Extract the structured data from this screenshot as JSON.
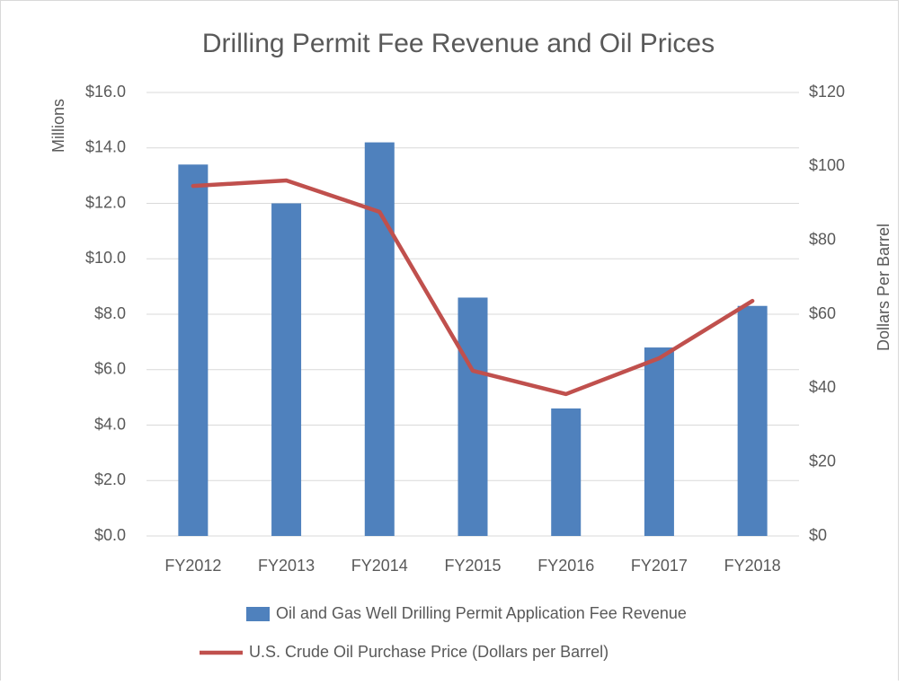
{
  "chart_data": {
    "type": "bar",
    "title": "Drilling Permit Fee Revenue and Oil Prices",
    "ylabel": "Millions",
    "y2label": "Dollars Per Barrel",
    "categories": [
      "FY2012",
      "FY2013",
      "FY2014",
      "FY2015",
      "FY2016",
      "FY2017",
      "FY2018"
    ],
    "series": [
      {
        "name": "Oil and Gas Well Drilling Permit Application Fee Revenue",
        "type": "bar",
        "color": "#4f81bd",
        "values": [
          13.4,
          12.0,
          14.2,
          8.6,
          4.6,
          6.8,
          8.3
        ]
      },
      {
        "name": "U.S. Crude Oil Purchase Price (Dollars per Barrel)",
        "type": "line",
        "axis": "y2",
        "color": "#c0504d",
        "values": [
          94.7,
          96.2,
          87.7,
          44.7,
          38.4,
          48.1,
          63.6
        ]
      }
    ],
    "ylim": [
      0,
      16
    ],
    "yticks": [
      {
        "value": 0,
        "label": "$0.0"
      },
      {
        "value": 2,
        "label": "$2.0"
      },
      {
        "value": 4,
        "label": "$4.0"
      },
      {
        "value": 6,
        "label": "$6.0"
      },
      {
        "value": 8,
        "label": "$8.0"
      },
      {
        "value": 10,
        "label": "$10.0"
      },
      {
        "value": 12,
        "label": "$12.0"
      },
      {
        "value": 14,
        "label": "$14.0"
      },
      {
        "value": 16,
        "label": "$16.0"
      }
    ],
    "y2lim": [
      0,
      120
    ],
    "y2ticks": [
      {
        "value": 0,
        "label": "$0"
      },
      {
        "value": 20,
        "label": "$20"
      },
      {
        "value": 40,
        "label": "$40"
      },
      {
        "value": 60,
        "label": "$60"
      },
      {
        "value": 80,
        "label": "$80"
      },
      {
        "value": 100,
        "label": "$100"
      },
      {
        "value": 120,
        "label": "$120"
      }
    ],
    "grid": true,
    "legend": "bottom"
  }
}
